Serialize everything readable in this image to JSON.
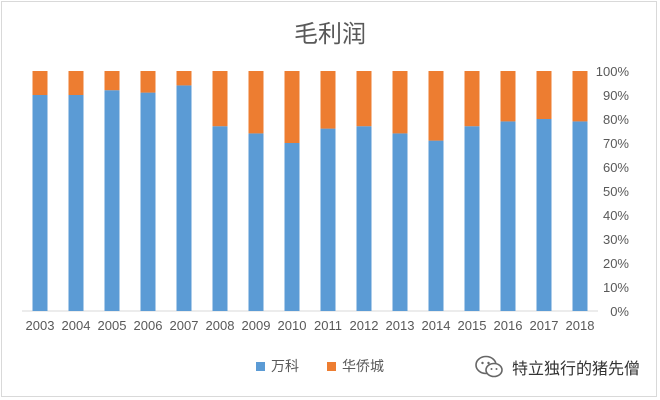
{
  "chart_data": {
    "type": "bar",
    "stacked": "percent",
    "title": "毛利润",
    "categories": [
      "2003",
      "2004",
      "2005",
      "2006",
      "2007",
      "2008",
      "2009",
      "2010",
      "2011",
      "2012",
      "2013",
      "2014",
      "2015",
      "2016",
      "2017",
      "2018"
    ],
    "series": [
      {
        "name": "万科",
        "color": "#5b9bd5",
        "values": [
          90,
          90,
          92,
          91,
          94,
          77,
          74,
          70,
          76,
          77,
          74,
          71,
          77,
          79,
          80,
          79
        ]
      },
      {
        "name": "华侨城",
        "color": "#ed7d31",
        "values": [
          10,
          10,
          8,
          9,
          6,
          23,
          26,
          30,
          24,
          23,
          26,
          29,
          23,
          21,
          20,
          21
        ]
      }
    ],
    "ylim": [
      0,
      100
    ],
    "yticks": [
      "0%",
      "10%",
      "20%",
      "30%",
      "40%",
      "50%",
      "60%",
      "70%",
      "80%",
      "90%",
      "100%"
    ],
    "grid": false,
    "legend": "bottom"
  },
  "watermark": {
    "text": "特立独行的猪先僧",
    "icon": "wechat-icon"
  }
}
